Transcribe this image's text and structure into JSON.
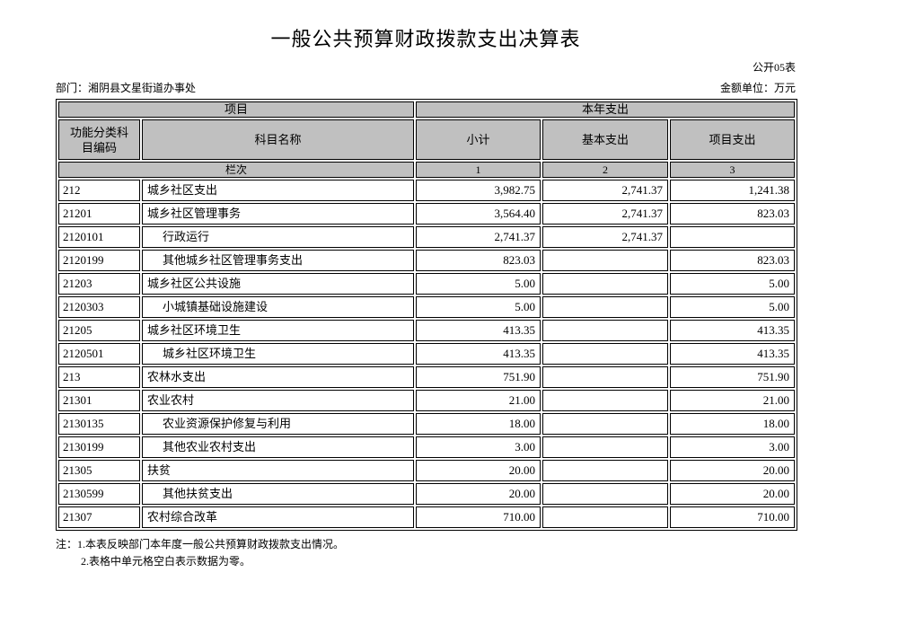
{
  "page": {
    "title": "一般公共预算财政拨款支出决算表",
    "form_no": "公开05表",
    "department": "部门：湘阴县文星街道办事处",
    "unit": "金额单位：万元"
  },
  "table": {
    "header": {
      "project": "项目",
      "current_year": "本年支出",
      "code": "功能分类科目编码",
      "subject_name": "科目名称",
      "subtotal": "小计",
      "basic": "基本支出",
      "project_exp": "项目支出",
      "row_label": "栏次",
      "col1": "1",
      "col2": "2",
      "col3": "3"
    },
    "rows": [
      {
        "code": "212",
        "name": "城乡社区支出",
        "subtotal": "3,982.75",
        "basic": "2,741.37",
        "project": "1,241.38",
        "indent": false
      },
      {
        "code": "21201",
        "name": "城乡社区管理事务",
        "subtotal": "3,564.40",
        "basic": "2,741.37",
        "project": "823.03",
        "indent": false
      },
      {
        "code": "2120101",
        "name": "行政运行",
        "subtotal": "2,741.37",
        "basic": "2,741.37",
        "project": "",
        "indent": true
      },
      {
        "code": "2120199",
        "name": "其他城乡社区管理事务支出",
        "subtotal": "823.03",
        "basic": "",
        "project": "823.03",
        "indent": true
      },
      {
        "code": "21203",
        "name": "城乡社区公共设施",
        "subtotal": "5.00",
        "basic": "",
        "project": "5.00",
        "indent": false
      },
      {
        "code": "2120303",
        "name": "小城镇基础设施建设",
        "subtotal": "5.00",
        "basic": "",
        "project": "5.00",
        "indent": true
      },
      {
        "code": "21205",
        "name": "城乡社区环境卫生",
        "subtotal": "413.35",
        "basic": "",
        "project": "413.35",
        "indent": false
      },
      {
        "code": "2120501",
        "name": "城乡社区环境卫生",
        "subtotal": "413.35",
        "basic": "",
        "project": "413.35",
        "indent": true
      },
      {
        "code": "213",
        "name": "农林水支出",
        "subtotal": "751.90",
        "basic": "",
        "project": "751.90",
        "indent": false
      },
      {
        "code": "21301",
        "name": "农业农村",
        "subtotal": "21.00",
        "basic": "",
        "project": "21.00",
        "indent": false
      },
      {
        "code": "2130135",
        "name": "农业资源保护修复与利用",
        "subtotal": "18.00",
        "basic": "",
        "project": "18.00",
        "indent": true
      },
      {
        "code": "2130199",
        "name": "其他农业农村支出",
        "subtotal": "3.00",
        "basic": "",
        "project": "3.00",
        "indent": true
      },
      {
        "code": "21305",
        "name": "扶贫",
        "subtotal": "20.00",
        "basic": "",
        "project": "20.00",
        "indent": false
      },
      {
        "code": "2130599",
        "name": "其他扶贫支出",
        "subtotal": "20.00",
        "basic": "",
        "project": "20.00",
        "indent": true
      },
      {
        "code": "21307",
        "name": "农村综合改革",
        "subtotal": "710.00",
        "basic": "",
        "project": "710.00",
        "indent": false
      }
    ]
  },
  "notes": {
    "line1": "注：1.本表反映部门本年度一般公共预算财政拨款支出情况。",
    "line2": "2.表格中单元格空白表示数据为零。"
  },
  "colors": {
    "header_fill": "#c0c0c0",
    "border": "#000000",
    "background": "#ffffff"
  }
}
